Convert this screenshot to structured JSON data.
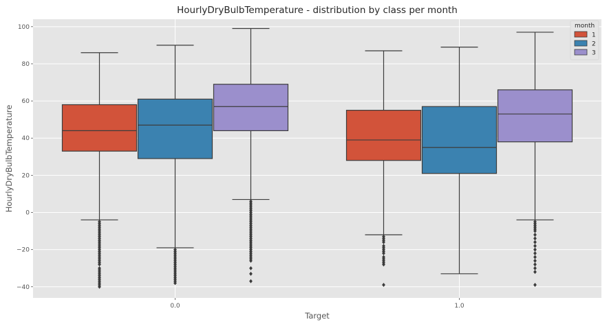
{
  "chart_data": {
    "type": "boxplot",
    "title": "HourlyDryBulbTemperature - distribution by class per month",
    "xlabel": "Target",
    "ylabel": "HourlyDryBulbTemperature",
    "categories": [
      "0.0",
      "1.0"
    ],
    "ylim": [
      -46,
      104
    ],
    "yticks": [
      -40,
      -20,
      0,
      20,
      40,
      60,
      80,
      100
    ],
    "ytick_labels": [
      "−40",
      "−20",
      "0",
      "20",
      "40",
      "60",
      "80",
      "100"
    ],
    "grid": true,
    "legend": {
      "title": "month",
      "position": "top-right"
    },
    "series": [
      {
        "name": "1",
        "color": "#d2533a",
        "boxes": [
          {
            "whisker_low": -4,
            "q1": 33,
            "median": 44,
            "q3": 58,
            "whisker_high": 86,
            "outliers": [
              -5,
              -6,
              -7,
              -8,
              -9,
              -10,
              -11,
              -12,
              -13,
              -14,
              -15,
              -16,
              -17,
              -18,
              -19,
              -20,
              -21,
              -22,
              -23,
              -24,
              -25,
              -26,
              -27,
              -28,
              -30,
              -31,
              -32,
              -33,
              -34,
              -35,
              -36,
              -37,
              -38,
              -39,
              -40
            ]
          },
          {
            "whisker_low": -12,
            "q1": 28,
            "median": 39,
            "q3": 55,
            "whisker_high": 87,
            "outliers": [
              -13,
              -14,
              -15,
              -16,
              -18,
              -19,
              -20,
              -21,
              -22,
              -24,
              -25,
              -26,
              -27,
              -28,
              -39
            ]
          }
        ]
      },
      {
        "name": "2",
        "color": "#3b82b0",
        "boxes": [
          {
            "whisker_low": -19,
            "q1": 29,
            "median": 47,
            "q3": 61,
            "whisker_high": 90,
            "outliers": [
              -20,
              -21,
              -22,
              -23,
              -24,
              -25,
              -26,
              -27,
              -28,
              -29,
              -30,
              -31,
              -32,
              -33,
              -34,
              -35,
              -36,
              -37,
              -38
            ]
          },
          {
            "whisker_low": -33,
            "q1": 21,
            "median": 35,
            "q3": 57,
            "whisker_high": 89,
            "outliers": []
          }
        ]
      },
      {
        "name": "3",
        "color": "#9b8fcc",
        "boxes": [
          {
            "whisker_low": 7,
            "q1": 44,
            "median": 57,
            "q3": 69,
            "whisker_high": 99,
            "outliers": [
              6,
              5,
              4,
              3,
              2,
              1,
              0,
              -1,
              -2,
              -3,
              -4,
              -5,
              -6,
              -7,
              -8,
              -9,
              -10,
              -11,
              -12,
              -13,
              -14,
              -15,
              -16,
              -17,
              -18,
              -19,
              -20,
              -21,
              -22,
              -23,
              -24,
              -25,
              -26,
              -30,
              -33,
              -37
            ]
          },
          {
            "whisker_low": -4,
            "q1": 38,
            "median": 53,
            "q3": 66,
            "whisker_high": 97,
            "outliers": [
              -5,
              -6,
              -7,
              -8,
              -9,
              -10,
              -12,
              -14,
              -16,
              -18,
              -20,
              -22,
              -24,
              -26,
              -28,
              -30,
              -32,
              -39
            ]
          }
        ]
      }
    ]
  }
}
